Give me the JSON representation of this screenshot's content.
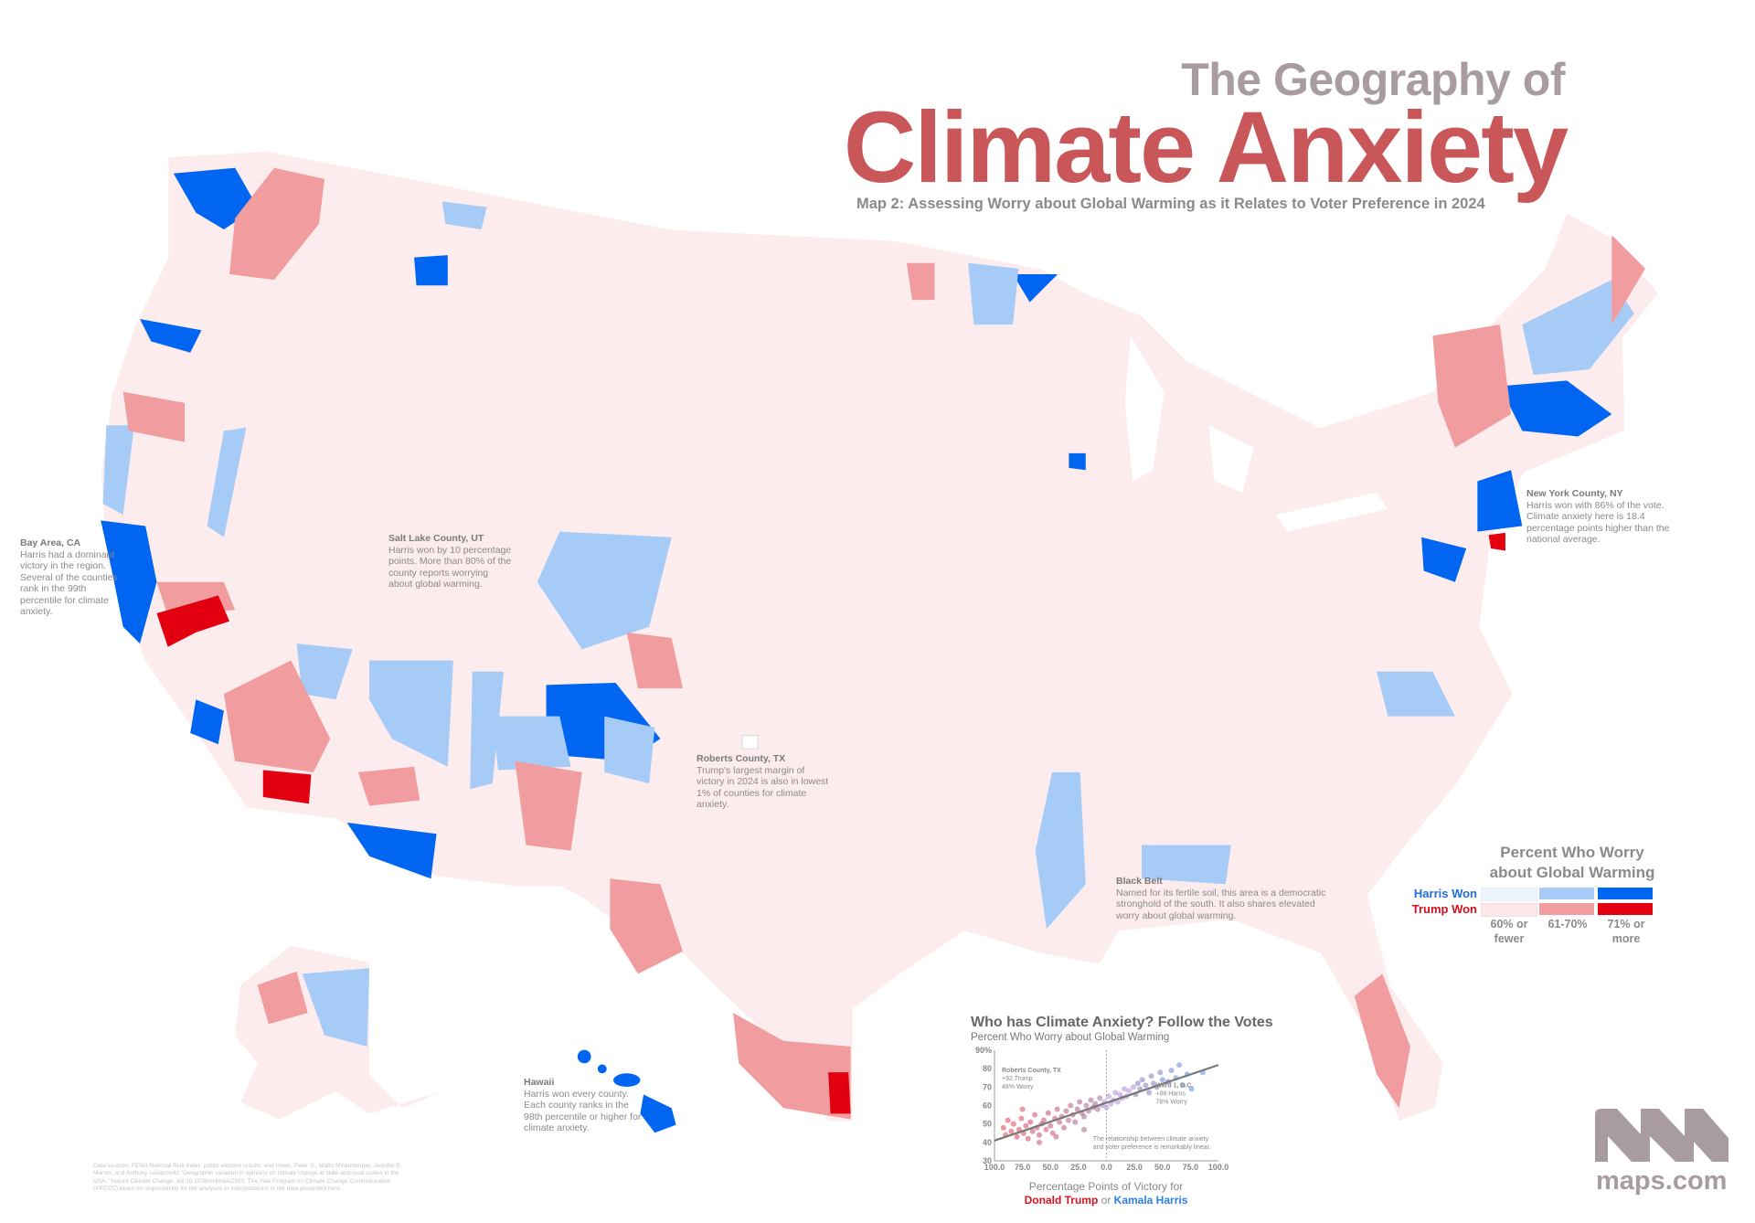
{
  "header": {
    "title_line1": "The Geography of",
    "title_line2": "Climate Anxiety",
    "subtitle": "Map 2: Assessing Worry about Global Warming as it Relates to Voter Preference in 2024"
  },
  "colors": {
    "title_red": "#c9575a",
    "harris": [
      "#eef5fd",
      "#a6cbf7",
      "#0066f2"
    ],
    "trump": [
      "#fde9ea",
      "#f19c9f",
      "#e20010"
    ]
  },
  "annotations": {
    "bay_area": {
      "title": "Bay Area, CA",
      "body": "Harris had a dominant victory in the region. Several of the counties rank in the 99th percentile for climate anxiety."
    },
    "salt_lake": {
      "title": "Salt Lake County, UT",
      "body": "Harris won by 10 percentage points. More than 80% of the county reports worrying about global warming."
    },
    "roberts": {
      "title": "Roberts County, TX",
      "body": "Trump's largest margin of victory in 2024 is also in lowest 1% of counties for climate anxiety."
    },
    "new_york": {
      "title": "New York County, NY",
      "body": "Harris won with 86% of the vote. Climate anxiety here is 18.4 percentage points higher than the national average."
    },
    "black_belt": {
      "title": "Black Belt",
      "body": "Named for its fertile soil, this area is a democratic stronghold of the south. It also shares elevated worry about global warming."
    },
    "hawaii": {
      "title": "Hawaii",
      "body": "Harris won every county. Each county ranks in the 98th percentile or higher for climate anxiety."
    }
  },
  "legend": {
    "title_line1": "Percent Who Worry",
    "title_line2": "about Global Warming",
    "harris_label": "Harris Won",
    "trump_label": "Trump Won",
    "bins": [
      "60% or fewer",
      "61-70%",
      "71% or more"
    ]
  },
  "chart_data": {
    "type": "scatter",
    "title": "Who has Climate Anxiety? Follow the Votes",
    "ylabel": "Percent Who Worry about Global Warming",
    "xlabel": "Percentage Points of Victory for",
    "xlabel_trump": "Donald Trump",
    "xlabel_or": "or",
    "xlabel_harris": "Kamala Harris",
    "xlim": [
      -100,
      100
    ],
    "ylim": [
      30,
      90
    ],
    "x_ticks": [
      "100.0",
      "75.0",
      "50.0",
      "25.0",
      "0.0",
      "25.0",
      "50.0",
      "75.0",
      "100.0"
    ],
    "y_ticks": [
      "30",
      "40",
      "50",
      "60",
      "70",
      "80",
      "90%"
    ],
    "trend_line": [
      [
        -100,
        41
      ],
      [
        100,
        82
      ]
    ],
    "annotations": [
      {
        "title": "Roberts County, TX",
        "lines": [
          "+92 Trump",
          "48% Worry"
        ]
      },
      {
        "title": "Ward 1, D.C.",
        "lines": [
          "+86 Harris",
          "78% Worry"
        ]
      },
      {
        "text": "The relationship between climate anxiety and voter preference is remarkably linear."
      }
    ],
    "points": [
      [
        -92,
        48
      ],
      [
        -90,
        44
      ],
      [
        -88,
        52
      ],
      [
        -85,
        46
      ],
      [
        -83,
        50
      ],
      [
        -80,
        43
      ],
      [
        -78,
        47
      ],
      [
        -76,
        53
      ],
      [
        -74,
        45
      ],
      [
        -72,
        49
      ],
      [
        -70,
        42
      ],
      [
        -68,
        51
      ],
      [
        -66,
        46
      ],
      [
        -64,
        55
      ],
      [
        -62,
        48
      ],
      [
        -60,
        44
      ],
      [
        -58,
        50
      ],
      [
        -56,
        52
      ],
      [
        -54,
        47
      ],
      [
        -52,
        56
      ],
      [
        -50,
        49
      ],
      [
        -48,
        45
      ],
      [
        -46,
        53
      ],
      [
        -44,
        58
      ],
      [
        -42,
        51
      ],
      [
        -40,
        54
      ],
      [
        -38,
        48
      ],
      [
        -36,
        57
      ],
      [
        -34,
        52
      ],
      [
        -32,
        60
      ],
      [
        -30,
        55
      ],
      [
        -28,
        51
      ],
      [
        -26,
        58
      ],
      [
        -24,
        62
      ],
      [
        -22,
        56
      ],
      [
        -20,
        54
      ],
      [
        -18,
        60
      ],
      [
        -16,
        57
      ],
      [
        -14,
        63
      ],
      [
        -12,
        59
      ],
      [
        -10,
        61
      ],
      [
        -8,
        58
      ],
      [
        -6,
        64
      ],
      [
        -4,
        60
      ],
      [
        -2,
        62
      ],
      [
        0,
        59
      ],
      [
        2,
        65
      ],
      [
        4,
        61
      ],
      [
        6,
        63
      ],
      [
        8,
        67
      ],
      [
        10,
        62
      ],
      [
        12,
        66
      ],
      [
        14,
        64
      ],
      [
        16,
        69
      ],
      [
        18,
        65
      ],
      [
        20,
        68
      ],
      [
        24,
        70
      ],
      [
        26,
        66
      ],
      [
        28,
        72
      ],
      [
        30,
        69
      ],
      [
        32,
        74
      ],
      [
        35,
        71
      ],
      [
        38,
        67
      ],
      [
        40,
        76
      ],
      [
        42,
        72
      ],
      [
        45,
        70
      ],
      [
        48,
        78
      ],
      [
        50,
        74
      ],
      [
        55,
        73
      ],
      [
        58,
        79
      ],
      [
        62,
        75
      ],
      [
        65,
        82
      ],
      [
        68,
        71
      ],
      [
        72,
        77
      ],
      [
        76,
        69
      ],
      [
        86,
        78
      ],
      [
        -75,
        58
      ],
      [
        -60,
        40
      ],
      [
        -45,
        43
      ],
      [
        -20,
        47
      ]
    ]
  },
  "footer": {
    "sources": "Data sources: FEMA National Risk Index, public election results, and Howe, Peter D., Matto Mildenberger, Jennifer R. Marlon, and Anthony Leiserowitz \"Geographic variation in opinions on climate change at state and local scales in the USA.\" Nature Climate Change, doi:10.1038/nclimate2583. The Yale Program on Climate Change Communication (YPCCC) bears no responsibility for the analyses or interpretations of the data presented here."
  },
  "logo": {
    "text": "maps.com"
  }
}
